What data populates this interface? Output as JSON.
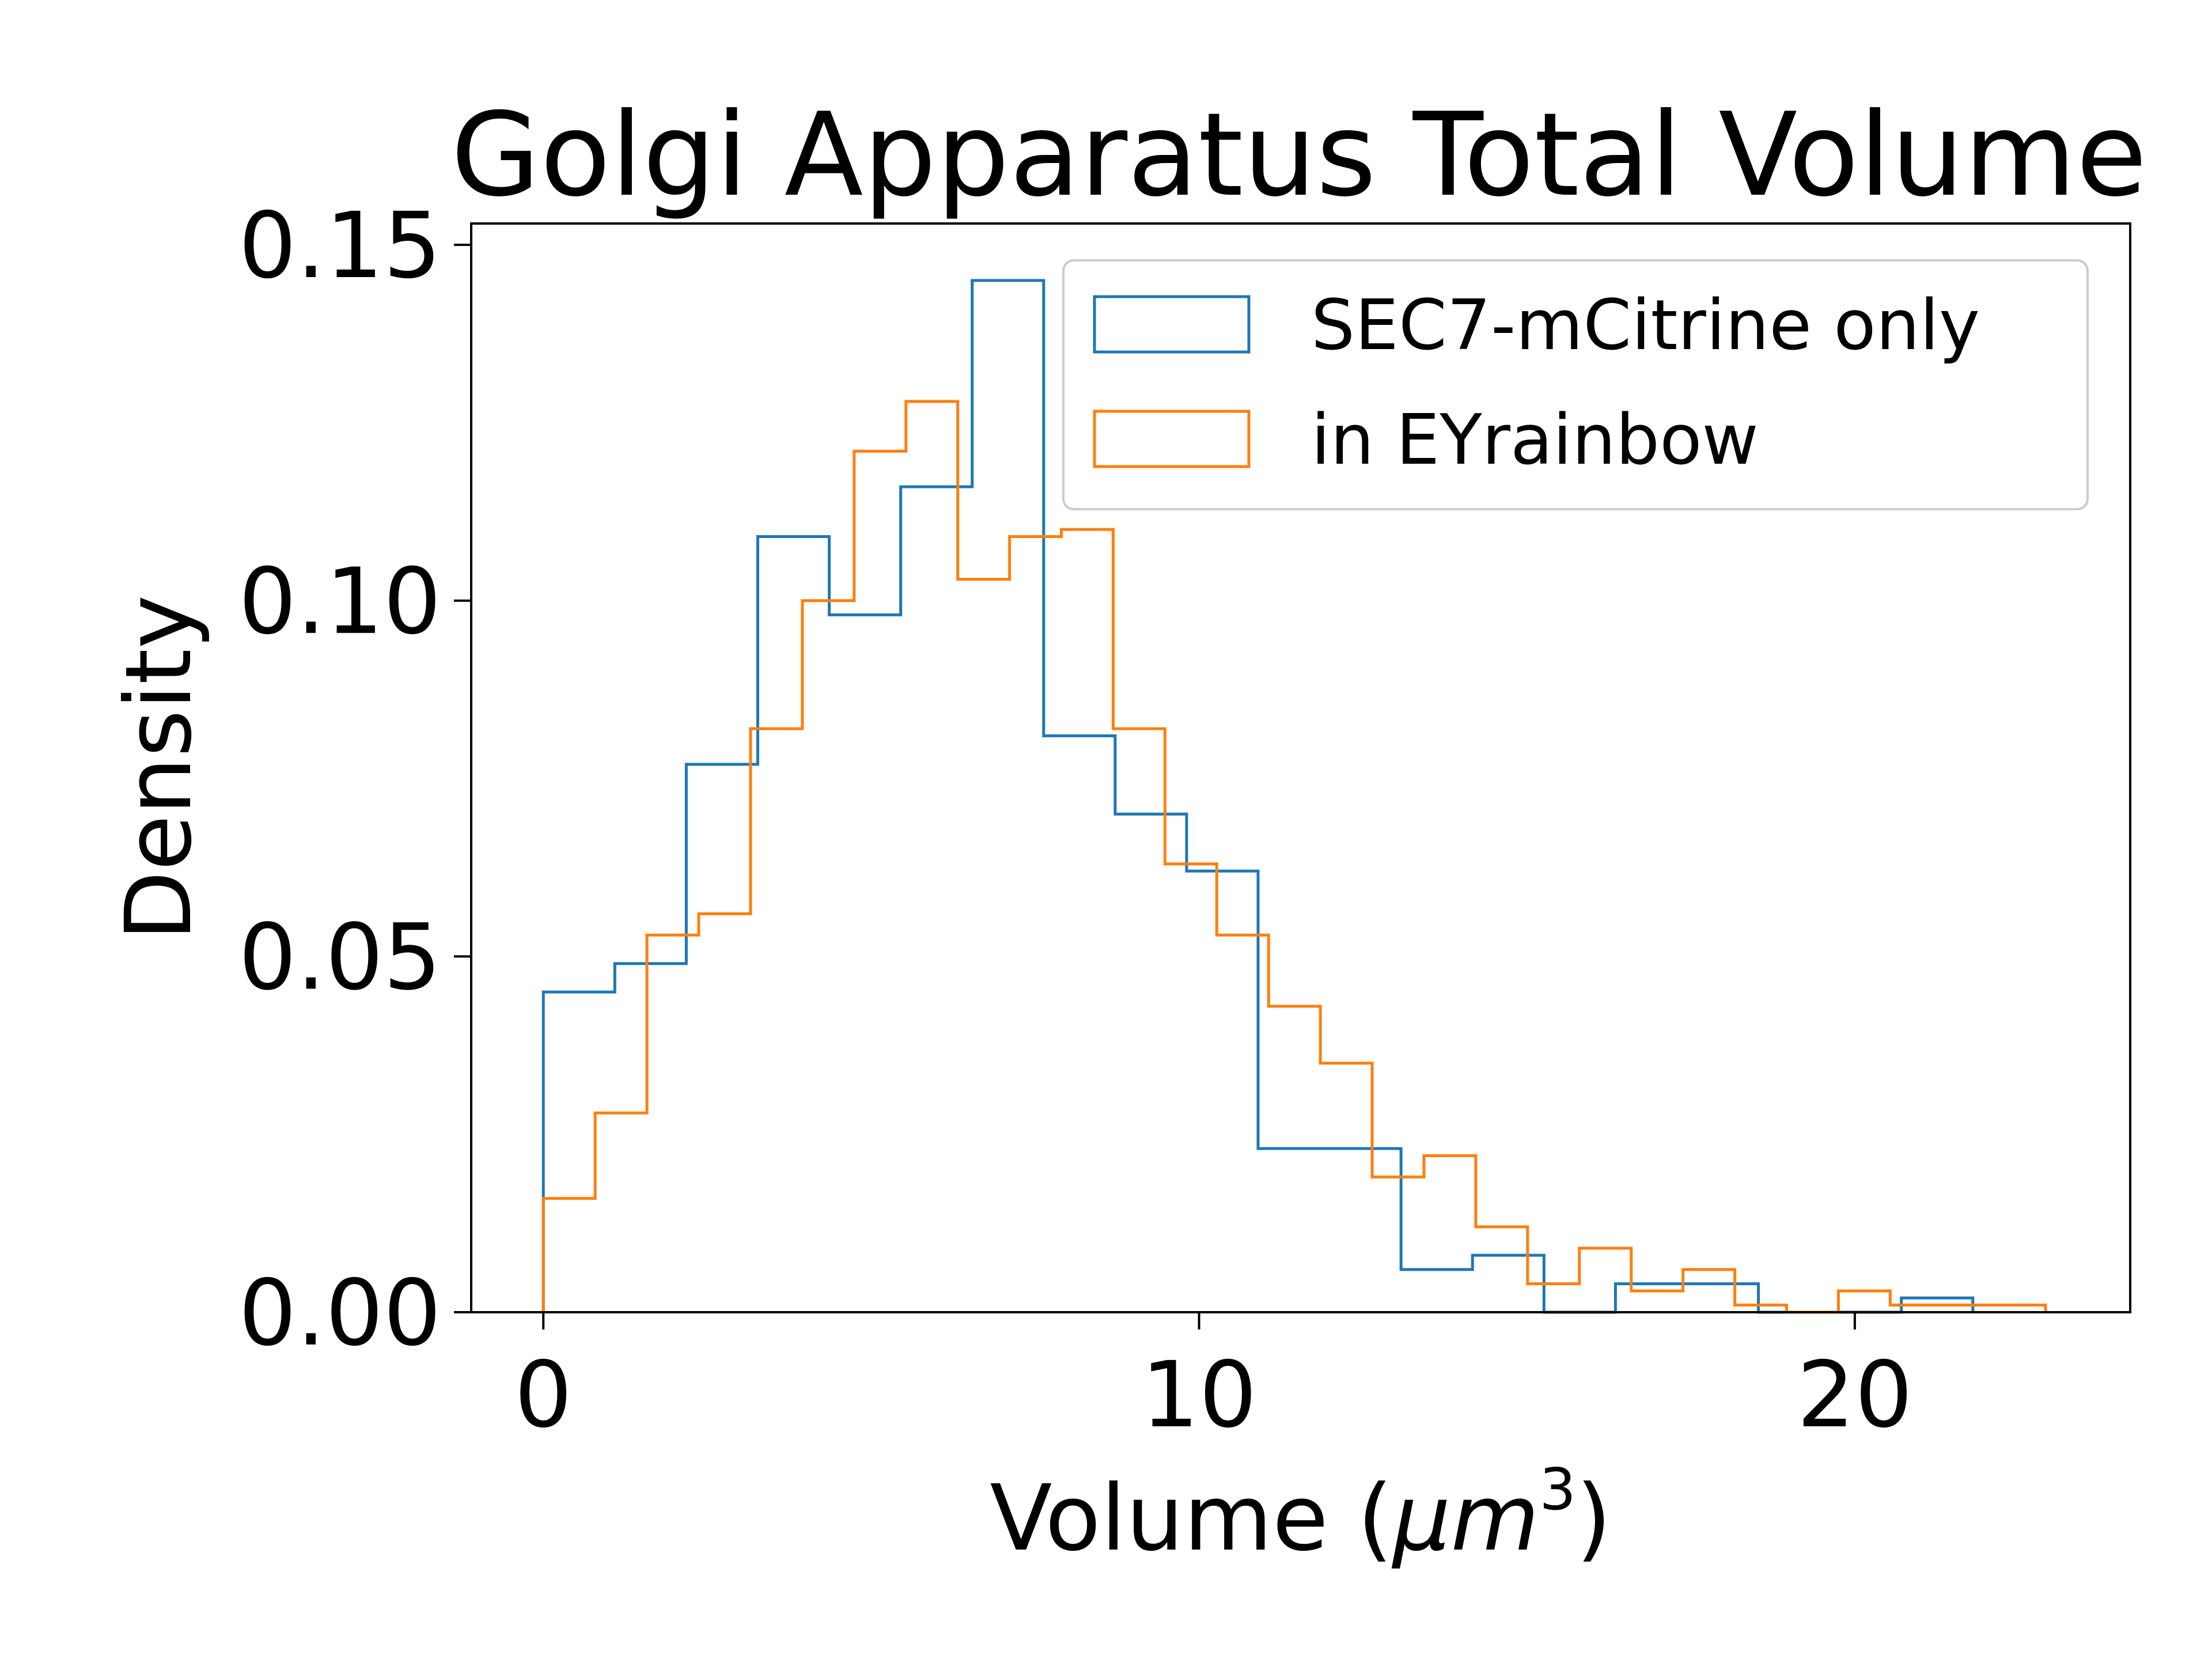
{
  "chart_data": {
    "type": "histogram-step",
    "title": "Golgi Apparatus Total Volume",
    "xlabel_main": "Volume (",
    "xlabel_unit": "μm",
    "xlabel_sup": "3",
    "xlabel_close": ")",
    "ylabel": "Density",
    "xlim": [
      -1.1,
      24.2
    ],
    "ylim": [
      0,
      0.153
    ],
    "xticks": [
      {
        "value": 0,
        "label": "0"
      },
      {
        "value": 10,
        "label": "10"
      },
      {
        "value": 20,
        "label": "20"
      }
    ],
    "yticks": [
      {
        "value": 0,
        "label": "0.00"
      },
      {
        "value": 0.05,
        "label": "0.05"
      },
      {
        "value": 0.1,
        "label": "0.10"
      },
      {
        "value": 0.15,
        "label": "0.15"
      }
    ],
    "grid": false,
    "legend_position": "top-right",
    "series": [
      {
        "name": "SEC7-mCitrine only",
        "color": "#1f77b4",
        "edges": [
          0,
          1.09,
          2.18,
          3.27,
          4.36,
          5.45,
          6.54,
          7.63,
          8.72,
          9.81,
          10.9,
          11.99,
          13.08,
          14.17,
          15.26,
          16.35,
          17.44,
          18.53,
          19.62,
          20.71,
          21.8
        ],
        "values": [
          0.045,
          0.049,
          0.077,
          0.109,
          0.098,
          0.116,
          0.145,
          0.081,
          0.07,
          0.062,
          0.023,
          0.023,
          0.006,
          0.008,
          0.0,
          0.004,
          0.004,
          0.0,
          0.0,
          0.002
        ]
      },
      {
        "name": "in EYrainbow",
        "color": "#ff7f0e",
        "edges": [
          0,
          0.79,
          1.58,
          2.37,
          3.16,
          3.95,
          4.74,
          5.53,
          6.32,
          7.11,
          7.9,
          8.69,
          9.48,
          10.27,
          11.06,
          11.85,
          12.64,
          13.43,
          14.22,
          15.01,
          15.8,
          16.59,
          17.38,
          18.17,
          18.96,
          19.75,
          20.54,
          21.33,
          22.12,
          22.91
        ],
        "values": [
          0.016,
          0.028,
          0.053,
          0.056,
          0.082,
          0.1,
          0.121,
          0.128,
          0.103,
          0.109,
          0.11,
          0.082,
          0.063,
          0.053,
          0.043,
          0.035,
          0.019,
          0.022,
          0.012,
          0.004,
          0.009,
          0.003,
          0.006,
          0.001,
          0.0,
          0.003,
          0.001,
          0.001,
          0.001
        ]
      }
    ]
  }
}
